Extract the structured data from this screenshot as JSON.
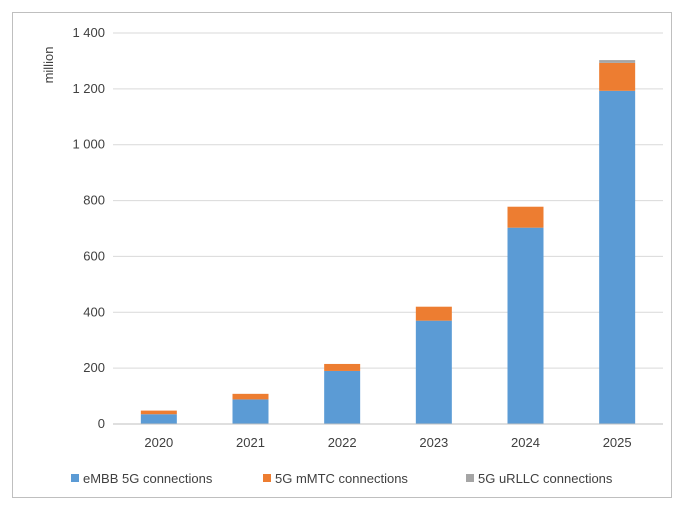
{
  "chart_data": {
    "type": "bar",
    "stacked": true,
    "title": "",
    "xlabel": "",
    "ylabel": "million",
    "categories": [
      "2020",
      "2021",
      "2022",
      "2023",
      "2024",
      "2025"
    ],
    "series": [
      {
        "name": "eMBB 5G connections",
        "color": "#5b9bd5",
        "values": [
          35,
          88,
          190,
          370,
          703,
          1193
        ]
      },
      {
        "name": "5G  mMTC connections",
        "color": "#ed7d31",
        "values": [
          13,
          20,
          25,
          50,
          75,
          100
        ]
      },
      {
        "name": "5G uRLLC connections",
        "color": "#a5a5a5",
        "values": [
          0,
          0,
          0,
          0,
          0,
          10
        ]
      }
    ],
    "ylim": [
      0,
      1400
    ],
    "yticks": [
      0,
      200,
      400,
      600,
      800,
      1000,
      1200,
      1400
    ],
    "ytick_labels": [
      "0",
      "200",
      "400",
      "600",
      "800",
      "1 000",
      "1 200",
      "1 400"
    ],
    "grid": true,
    "legend_position": "bottom"
  }
}
